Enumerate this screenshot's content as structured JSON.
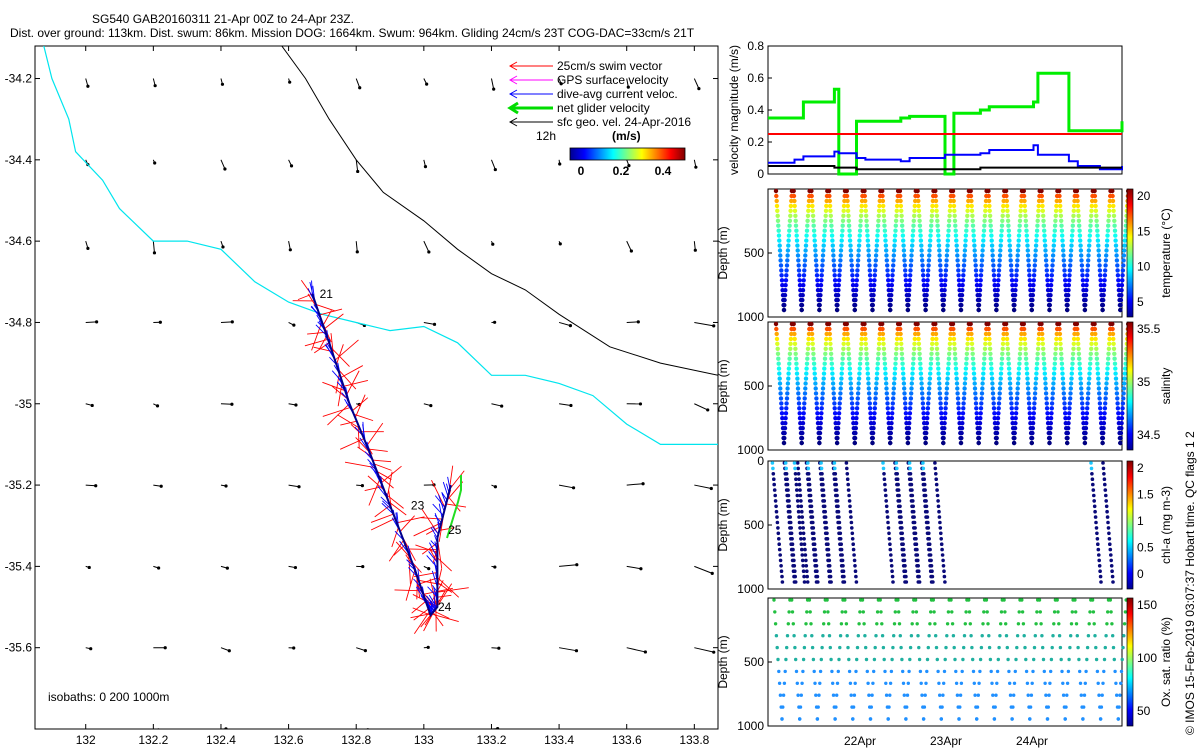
{
  "header": {
    "title_line1": "SG540 GAB20160311 21-Apr 00Z to 24-Apr 23Z.",
    "title_line2": "Dist. over ground: 113km. Dist. swum: 86km. Mission DOG: 1664km. Swum: 964km. Gliding 24cm/s 23T COG-DAC=33cm/s 21T"
  },
  "copyright": "© IMOS 15-Feb-2019 03:07:37 Hobart time. QC flags 1  2",
  "chart_data": [
    {
      "type": "map",
      "xlim": [
        131.85,
        133.87
      ],
      "ylim": [
        -35.8,
        -34.12
      ],
      "x_ticks": [
        "132",
        "132.2",
        "132.4",
        "132.6",
        "132.8",
        "133",
        "133.2",
        "133.4",
        "133.6",
        "133.8"
      ],
      "y_ticks": [
        "-34.2",
        "-34.4",
        "-34.6",
        "-34.8",
        "-35",
        "-35.2",
        "-35.4",
        "-35.6"
      ],
      "legend": [
        {
          "label": "25cm/s swim vector",
          "color": "#ff0000"
        },
        {
          "label": "GPS surface velocity",
          "color": "#ff00ff"
        },
        {
          "label": "dive-avg current veloc.",
          "color": "#0000ff"
        },
        {
          "label": "net glider velocity",
          "color": "#00dd00"
        },
        {
          "label": "sfc geo. vel. 24-Apr-2016",
          "color": "#000000"
        }
      ],
      "legend_12h": "12h",
      "colorbar": {
        "label": "(m/s)",
        "ticks": [
          "0",
          "0.2",
          "0.4"
        ],
        "range": [
          0,
          0.52
        ]
      },
      "isobath_label": "isobaths: 0   200  1000m",
      "isobath_200m": [
        [
          131.87,
          -34.1
        ],
        [
          131.9,
          -34.2
        ],
        [
          131.95,
          -34.3
        ],
        [
          131.97,
          -34.38
        ],
        [
          132.05,
          -34.45
        ],
        [
          132.1,
          -34.52
        ],
        [
          132.2,
          -34.6
        ],
        [
          132.3,
          -34.6
        ],
        [
          132.4,
          -34.62
        ],
        [
          132.5,
          -34.7
        ],
        [
          132.6,
          -34.75
        ],
        [
          132.7,
          -34.78
        ],
        [
          132.8,
          -34.8
        ],
        [
          132.9,
          -34.82
        ],
        [
          133.0,
          -34.81
        ],
        [
          133.1,
          -34.85
        ],
        [
          133.2,
          -34.93
        ],
        [
          133.3,
          -34.93
        ],
        [
          133.4,
          -34.95
        ],
        [
          133.5,
          -34.98
        ],
        [
          133.6,
          -35.05
        ],
        [
          133.7,
          -35.1
        ],
        [
          133.87,
          -35.1
        ]
      ],
      "isobath_1000m": [
        [
          132.58,
          -34.12
        ],
        [
          132.65,
          -34.2
        ],
        [
          132.72,
          -34.3
        ],
        [
          132.8,
          -34.4
        ],
        [
          132.88,
          -34.48
        ],
        [
          133.0,
          -34.55
        ],
        [
          133.1,
          -34.62
        ],
        [
          133.2,
          -34.68
        ],
        [
          133.3,
          -34.72
        ],
        [
          133.4,
          -34.78
        ],
        [
          133.55,
          -34.86
        ],
        [
          133.7,
          -34.9
        ],
        [
          133.87,
          -34.93
        ]
      ],
      "track_labels": [
        {
          "text": "21",
          "x": 132.68,
          "y": -34.73
        },
        {
          "text": "23",
          "x": 132.95,
          "y": -35.25
        },
        {
          "text": "25",
          "x": 133.06,
          "y": -35.31
        },
        {
          "text": "24",
          "x": 133.03,
          "y": -35.5
        }
      ],
      "track": [
        [
          132.67,
          -34.73
        ],
        [
          132.72,
          -34.85
        ],
        [
          132.78,
          -35.0
        ],
        [
          132.84,
          -35.12
        ],
        [
          132.9,
          -35.25
        ],
        [
          132.97,
          -35.4
        ],
        [
          133.02,
          -35.52
        ],
        [
          133.04,
          -35.5
        ],
        [
          133.04,
          -35.33
        ],
        [
          133.08,
          -35.2
        ]
      ]
    },
    {
      "type": "line",
      "ylabel": "velocity magnitude (m/s)",
      "ylim": [
        0,
        0.8
      ],
      "y_ticks": [
        "0",
        "0.2",
        "0.4",
        "0.6",
        "0.8"
      ],
      "x": [
        0,
        0.3,
        0.4,
        0.75,
        0.8,
        1.0,
        1.1,
        1.5,
        1.6,
        2.0,
        2.1,
        2.4,
        2.5,
        3.0,
        3.05,
        3.4,
        3.5,
        3.75,
        4.0
      ],
      "series": [
        {
          "color": "#00ee00",
          "values": [
            0.35,
            0.35,
            0.45,
            0.53,
            0.0,
            0.33,
            0.33,
            0.35,
            0.36,
            0.0,
            0.38,
            0.4,
            0.42,
            0.45,
            0.63,
            0.27,
            0.27,
            0.27,
            0.33
          ]
        },
        {
          "color": "#ff0000",
          "values": [
            0.25,
            0.25,
            0.25,
            0.25,
            0.25,
            0.25,
            0.25,
            0.25,
            0.25,
            0.25,
            0.25,
            0.25,
            0.25,
            0.25,
            0.25,
            0.25,
            0.25,
            0.25,
            0.25
          ]
        },
        {
          "color": "#0000ff",
          "values": [
            0.07,
            0.09,
            0.11,
            0.14,
            0.13,
            0.1,
            0.09,
            0.08,
            0.1,
            0.12,
            0.12,
            0.13,
            0.15,
            0.18,
            0.12,
            0.08,
            0.05,
            0.03,
            0.05
          ]
        },
        {
          "color": "#000000",
          "values": [
            0.05,
            0.05,
            0.05,
            0.04,
            0.04,
            0.03,
            0.03,
            0.03,
            0.03,
            0.03,
            0.03,
            0.04,
            0.04,
            0.04,
            0.04,
            0.04,
            0.04,
            0.04,
            0.04
          ]
        }
      ]
    },
    {
      "type": "scatter",
      "ylabel": "Depth (m)",
      "ylim": [
        1000,
        0
      ],
      "y_ticks": [
        "500",
        "1000"
      ],
      "colorbar_label": "temperature (°C)",
      "colorbar_ticks": [
        "5",
        "10",
        "15",
        "20"
      ],
      "dives": 20
    },
    {
      "type": "scatter",
      "ylabel": "Depth (m)",
      "ylim": [
        1000,
        0
      ],
      "y_ticks": [
        "500",
        "1000"
      ],
      "colorbar_label": "salinity",
      "colorbar_ticks": [
        "34.5",
        "35",
        "35.5"
      ],
      "dives": 20
    },
    {
      "type": "scatter",
      "ylabel": "Depth (m)",
      "ylim": [
        1000,
        0
      ],
      "y_ticks": [
        "0",
        "500",
        "1000"
      ],
      "colorbar_label": "chl-a (mg m-3)",
      "colorbar_ticks": [
        "0",
        "0.5",
        "1",
        "1.5",
        "2"
      ],
      "dives": 11
    },
    {
      "type": "scatter",
      "ylabel": "Depth (m)",
      "ylim": [
        1000,
        0
      ],
      "y_ticks": [
        "500",
        "1000"
      ],
      "x_ticks": [
        "22Apr",
        "23Apr",
        "24Apr"
      ],
      "colorbar_label": "Ox. sat. ratio (%)",
      "colorbar_ticks": [
        "50",
        "100",
        "150"
      ],
      "dives": 20
    }
  ]
}
